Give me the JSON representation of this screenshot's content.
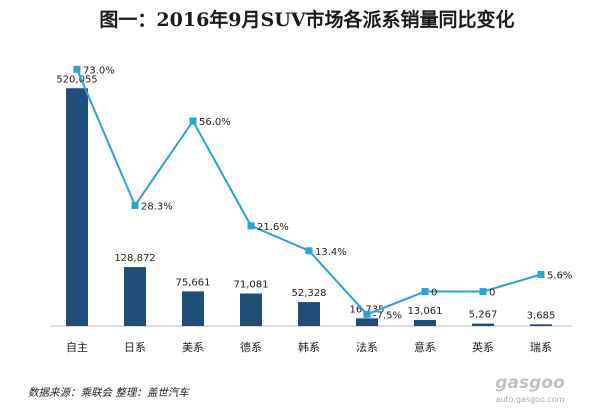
{
  "chart_data": {
    "type": "bar",
    "title": "图一：2016年9月SUV市场各派系销量同比变化",
    "categories": [
      "自主",
      "日系",
      "美系",
      "德系",
      "韩系",
      "法系",
      "意系",
      "英系",
      "瑞系"
    ],
    "bar_labels": [
      "520,055",
      "128,872",
      "75,661",
      "71,081",
      "52,328",
      "16,735",
      "13,061",
      "5,267",
      "3,685"
    ],
    "series": [
      {
        "values": [
          520055,
          128872,
          75661,
          71081,
          52328,
          16735,
          13061,
          5267,
          3685
        ],
        "color": "#1f4e79"
      },
      {
        "values": [
          73.0,
          28.3,
          56.0,
          21.6,
          13.4,
          -7.5,
          0,
          0,
          5.6
        ],
        "color": "#2aa3dc"
      }
    ],
    "line_labels": [
      "73.0%",
      "28.3%",
      "56.0%",
      "21.6%",
      "13.4%",
      "-7.5%",
      "0",
      "0",
      "5.6%"
    ],
    "bar_ylim": [
      0,
      560000
    ],
    "line_ylim": [
      -10,
      80
    ],
    "grid": false
  },
  "source_text": "数据来源：乘联会  整理：盖世汽车",
  "watermark": {
    "brand": "gasgoo",
    "url": "auto.gasgoo.com"
  }
}
